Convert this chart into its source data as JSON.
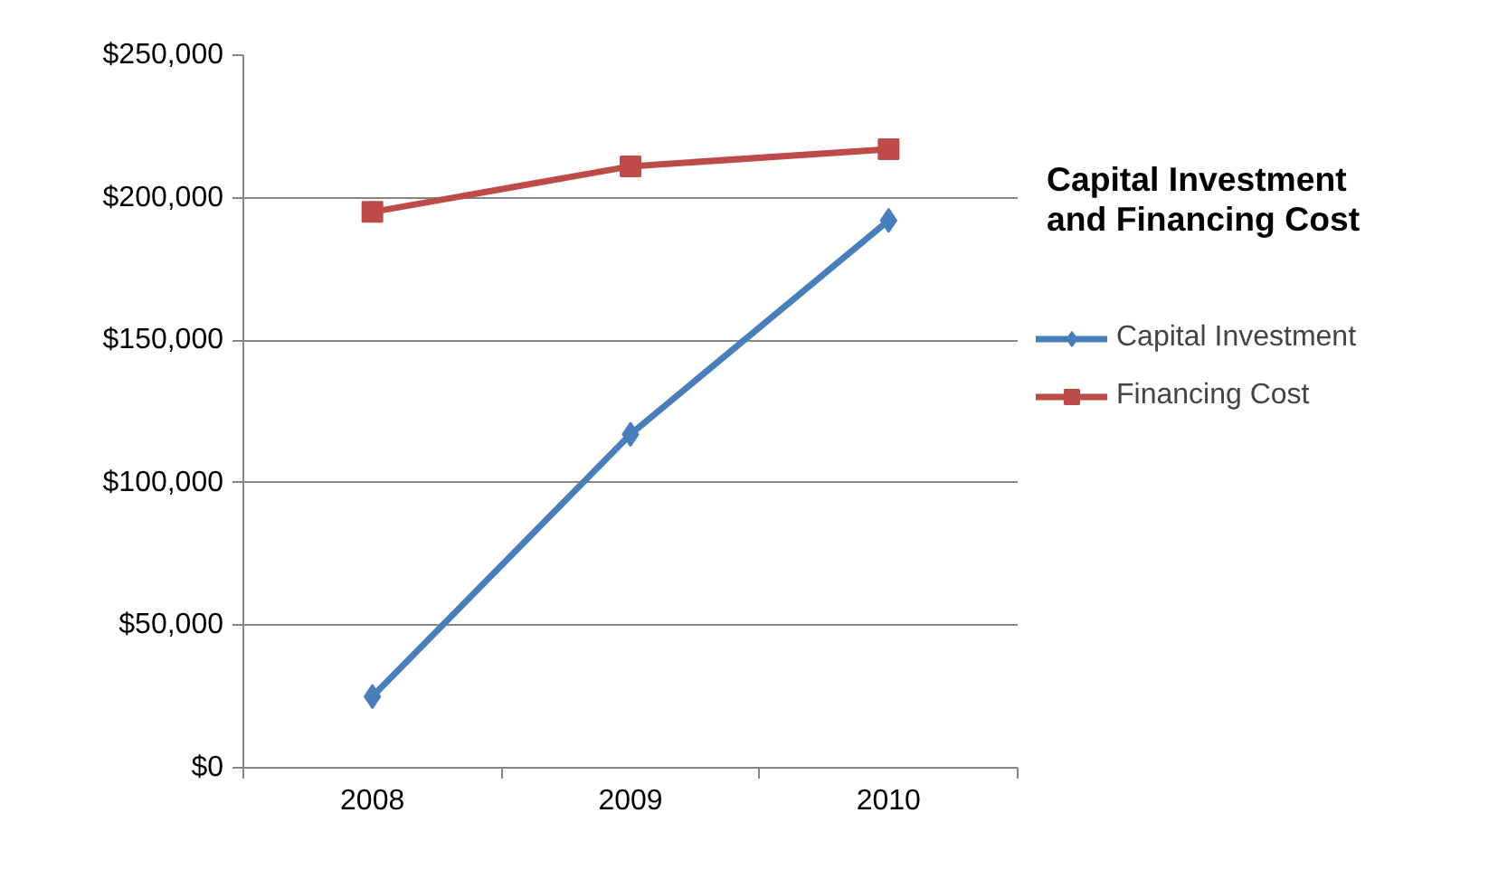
{
  "chart_data": {
    "type": "line",
    "title": "Capital Investment\nand Financing Cost",
    "categories": [
      "2008",
      "2009",
      "2010"
    ],
    "series": [
      {
        "name": "Capital Investment",
        "color": "#4a7ebb",
        "values": [
          25000,
          117000,
          192000
        ],
        "marker": "diamond"
      },
      {
        "name": "Financing Cost",
        "color": "#be4b48",
        "values": [
          195000,
          211000,
          217000
        ],
        "marker": "square"
      }
    ],
    "ylim": [
      0,
      250000
    ],
    "yticks": [
      {
        "value": 0,
        "label": "$0"
      },
      {
        "value": 50000,
        "label": "$50,000"
      },
      {
        "value": 100000,
        "label": "$100,000"
      },
      {
        "value": 150000,
        "label": "$150,000"
      },
      {
        "value": 200000,
        "label": "$200,000"
      },
      {
        "value": 250000,
        "label": "$250,000"
      }
    ],
    "grid": "y",
    "legend": "right",
    "line_style": "solid"
  }
}
